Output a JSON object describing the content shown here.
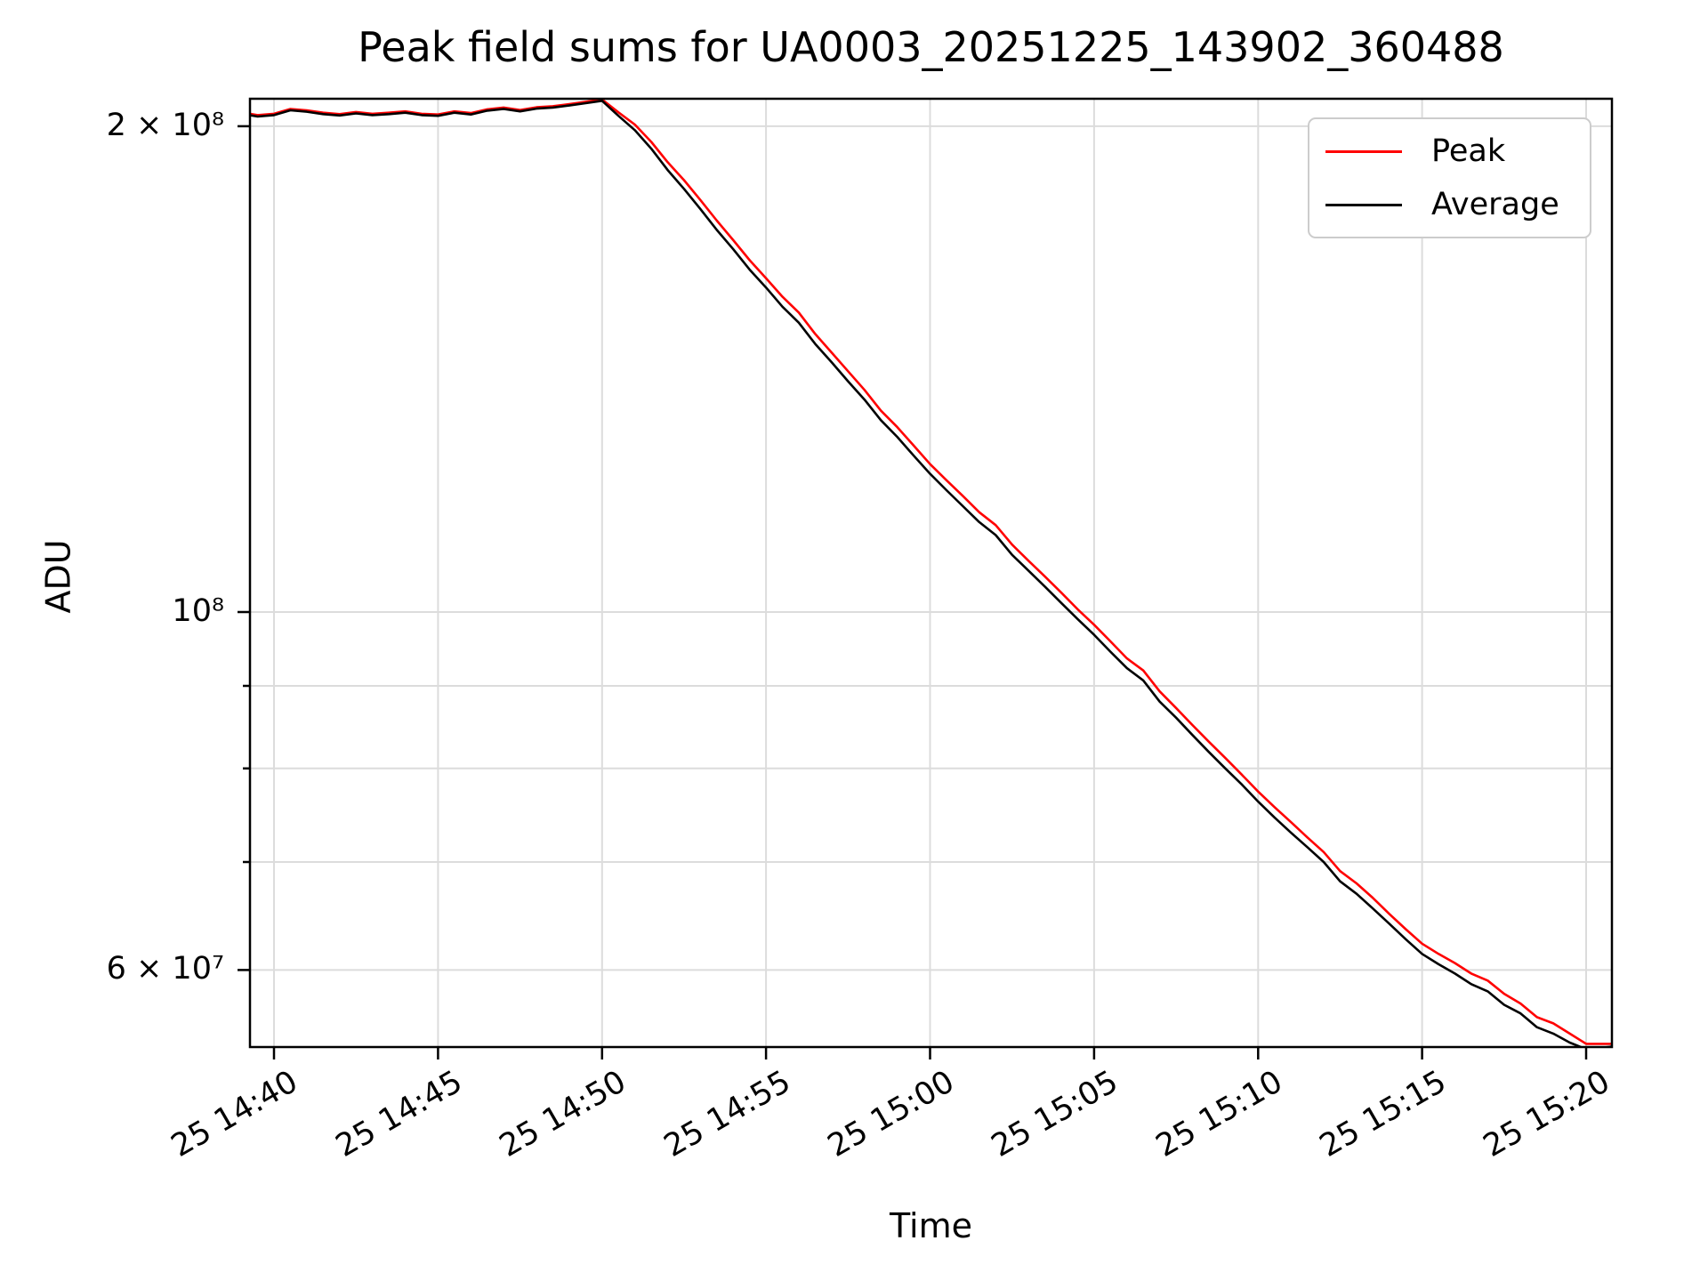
{
  "chart_data": {
    "type": "line",
    "title": "Peak field sums for UA0003_20251225_143902_360488",
    "xlabel": "Time",
    "ylabel": "ADU",
    "y_scale": "log",
    "grid": true,
    "legend_position": "upper right",
    "grid_color": "#dcdcdc",
    "spine_color": "#000000",
    "xlim": [
      "14:39:15",
      "15:20:47"
    ],
    "ylim": [
      53800000.0,
      207800000.0
    ],
    "x_ticks": [
      {
        "t": "14:40",
        "label": "25 14:40"
      },
      {
        "t": "14:45",
        "label": "25 14:45"
      },
      {
        "t": "14:50",
        "label": "25 14:50"
      },
      {
        "t": "14:55",
        "label": "25 14:55"
      },
      {
        "t": "15:00",
        "label": "25 15:00"
      },
      {
        "t": "15:05",
        "label": "25 15:05"
      },
      {
        "t": "15:10",
        "label": "25 15:10"
      },
      {
        "t": "15:15",
        "label": "25 15:15"
      },
      {
        "t": "15:20",
        "label": "25 15:20"
      }
    ],
    "y_ticks": [
      {
        "value": 200000000.0,
        "label": "2 × 10⁸"
      },
      {
        "value": 100000000.0,
        "label": "10⁸"
      },
      {
        "value": 90000000.0,
        "label": ""
      },
      {
        "value": 80000000.0,
        "label": ""
      },
      {
        "value": 70000000.0,
        "label": ""
      },
      {
        "value": 60000000.0,
        "label": "6 × 10⁷"
      }
    ],
    "x": [
      "14:39:00",
      "14:39:30",
      "14:40:00",
      "14:40:30",
      "14:41:00",
      "14:41:30",
      "14:42:00",
      "14:42:30",
      "14:43:00",
      "14:43:30",
      "14:44:00",
      "14:44:30",
      "14:45:00",
      "14:45:30",
      "14:46:00",
      "14:46:30",
      "14:47:00",
      "14:47:30",
      "14:48:00",
      "14:48:30",
      "14:49:00",
      "14:49:30",
      "14:50:00",
      "14:50:30",
      "14:51:00",
      "14:51:30",
      "14:52:00",
      "14:52:30",
      "14:53:00",
      "14:53:30",
      "14:54:00",
      "14:54:30",
      "14:55:00",
      "14:55:30",
      "14:56:00",
      "14:56:30",
      "14:57:00",
      "14:57:30",
      "14:58:00",
      "14:58:30",
      "14:59:00",
      "14:59:30",
      "15:00:00",
      "15:00:30",
      "15:01:00",
      "15:01:30",
      "15:02:00",
      "15:02:30",
      "15:03:00",
      "15:03:30",
      "15:04:00",
      "15:04:30",
      "15:05:00",
      "15:05:30",
      "15:06:00",
      "15:06:30",
      "15:07:00",
      "15:07:30",
      "15:08:00",
      "15:08:30",
      "15:09:00",
      "15:09:30",
      "15:10:00",
      "15:10:30",
      "15:11:00",
      "15:11:30",
      "15:12:00",
      "15:12:30",
      "15:13:00",
      "15:13:30",
      "15:14:00",
      "15:14:30",
      "15:15:00",
      "15:15:30",
      "15:16:00",
      "15:16:30",
      "15:17:00",
      "15:17:30",
      "15:18:00",
      "15:18:30",
      "15:19:00",
      "15:19:30",
      "15:20:00",
      "15:20:30",
      "15:20:48"
    ],
    "series": [
      {
        "name": "Peak",
        "color": "#ff0000",
        "values": [
          204000000.0,
          203200000.0,
          203600000.0,
          205000000.0,
          204600000.0,
          203900000.0,
          203500000.0,
          204100000.0,
          203600000.0,
          203900000.0,
          204300000.0,
          203600000.0,
          203400000.0,
          204300000.0,
          203800000.0,
          204900000.0,
          205400000.0,
          204700000.0,
          205500000.0,
          205800000.0,
          206400000.0,
          207100000.0,
          207800000.0,
          204000000.0,
          200500000.0,
          195600000.0,
          190000000.0,
          185200000.0,
          180000000.0,
          174800000.0,
          170000000.0,
          165200000.0,
          161000000.0,
          156800000.0,
          153300000.0,
          148700000.0,
          144800000.0,
          141000000.0,
          137300000.0,
          133300000.0,
          130200000.0,
          126800000.0,
          123500000.0,
          120700000.0,
          118000000.0,
          115300000.0,
          113200000.0,
          110100000.0,
          107600000.0,
          105200000.0,
          102800000.0,
          100400000.0,
          98200000.0,
          95900000.0,
          93600000.0,
          92000000.0,
          89300000.0,
          87200000.0,
          85100000.0,
          83100000.0,
          81200000.0,
          79300000.0,
          77400000.0,
          75700000.0,
          74100000.0,
          72500000.0,
          71000000.0,
          69100000.0,
          67900000.0,
          66500000.0,
          65000000.0,
          63600000.0,
          62300000.0,
          61400000.0,
          60600000.0,
          59700000.0,
          59100000.0,
          58000000.0,
          57200000.0,
          56100000.0,
          55600000.0,
          54800000.0,
          54000000.0,
          54000000.0,
          54000000.0
        ]
      },
      {
        "name": "Average",
        "color": "#000000",
        "values": [
          203600000.0,
          202800000.0,
          203200000.0,
          204600000.0,
          204200000.0,
          203500000.0,
          203100000.0,
          203700000.0,
          203200000.0,
          203500000.0,
          203900000.0,
          203200000.0,
          203000000.0,
          203900000.0,
          203400000.0,
          204500000.0,
          205000000.0,
          204300000.0,
          205100000.0,
          205400000.0,
          206000000.0,
          206700000.0,
          207400000.0,
          203000000.0,
          198900000.0,
          193700000.0,
          187900000.0,
          182900000.0,
          177700000.0,
          172500000.0,
          167800000.0,
          163000000.0,
          158900000.0,
          154600000.0,
          151100000.0,
          146600000.0,
          142800000.0,
          139000000.0,
          135400000.0,
          131500000.0,
          128400000.0,
          125000000.0,
          121800000.0,
          119000000.0,
          116300000.0,
          113700000.0,
          111600000.0,
          108500000.0,
          106100000.0,
          103700000.0,
          101300000.0,
          99000000.0,
          96800000.0,
          94500000.0,
          92300000.0,
          90700000.0,
          88000000.0,
          86000000.0,
          83900000.0,
          81900000.0,
          80000000.0,
          78200000.0,
          76300000.0,
          74600000.0,
          73000000.0,
          71500000.0,
          70000000.0,
          68100000.0,
          66900000.0,
          65500000.0,
          64100000.0,
          62700000.0,
          61400000.0,
          60500000.0,
          59700000.0,
          58800000.0,
          58200000.0,
          57100000.0,
          56400000.0,
          55300000.0,
          54800000.0,
          54100000.0,
          53600000.0,
          53700000.0,
          53800000.0
        ]
      }
    ]
  }
}
